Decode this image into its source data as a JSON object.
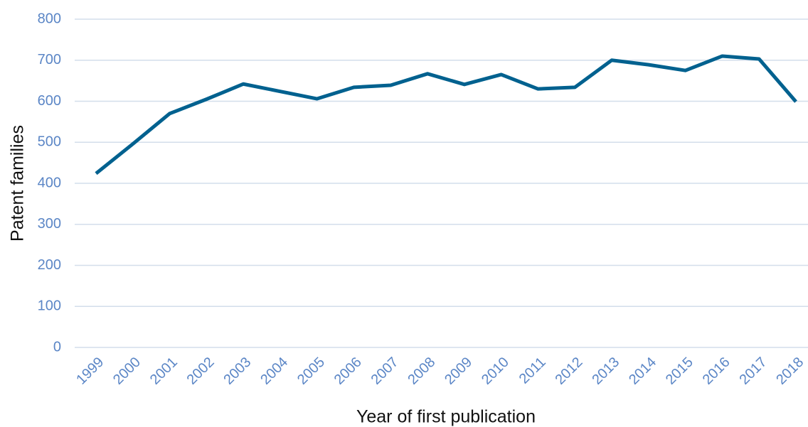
{
  "chart_data": {
    "type": "line",
    "categories": [
      "1999",
      "2000",
      "2001",
      "2002",
      "2003",
      "2004",
      "2005",
      "2006",
      "2007",
      "2008",
      "2009",
      "2010",
      "2011",
      "2012",
      "2013",
      "2014",
      "2015",
      "2016",
      "2017",
      "2018"
    ],
    "series": [
      {
        "name": "Patent families",
        "color": "#00618f",
        "values": [
          424,
          496,
          570,
          605,
          642,
          624,
          606,
          634,
          639,
          667,
          641,
          665,
          630,
          634,
          700,
          689,
          675,
          710,
          703,
          599
        ]
      }
    ],
    "xlabel": "Year of first publication",
    "ylabel": "Patent families",
    "ylim": [
      0,
      800
    ],
    "yticks": [
      0,
      100,
      200,
      300,
      400,
      500,
      600,
      700,
      800
    ],
    "grid": true
  }
}
